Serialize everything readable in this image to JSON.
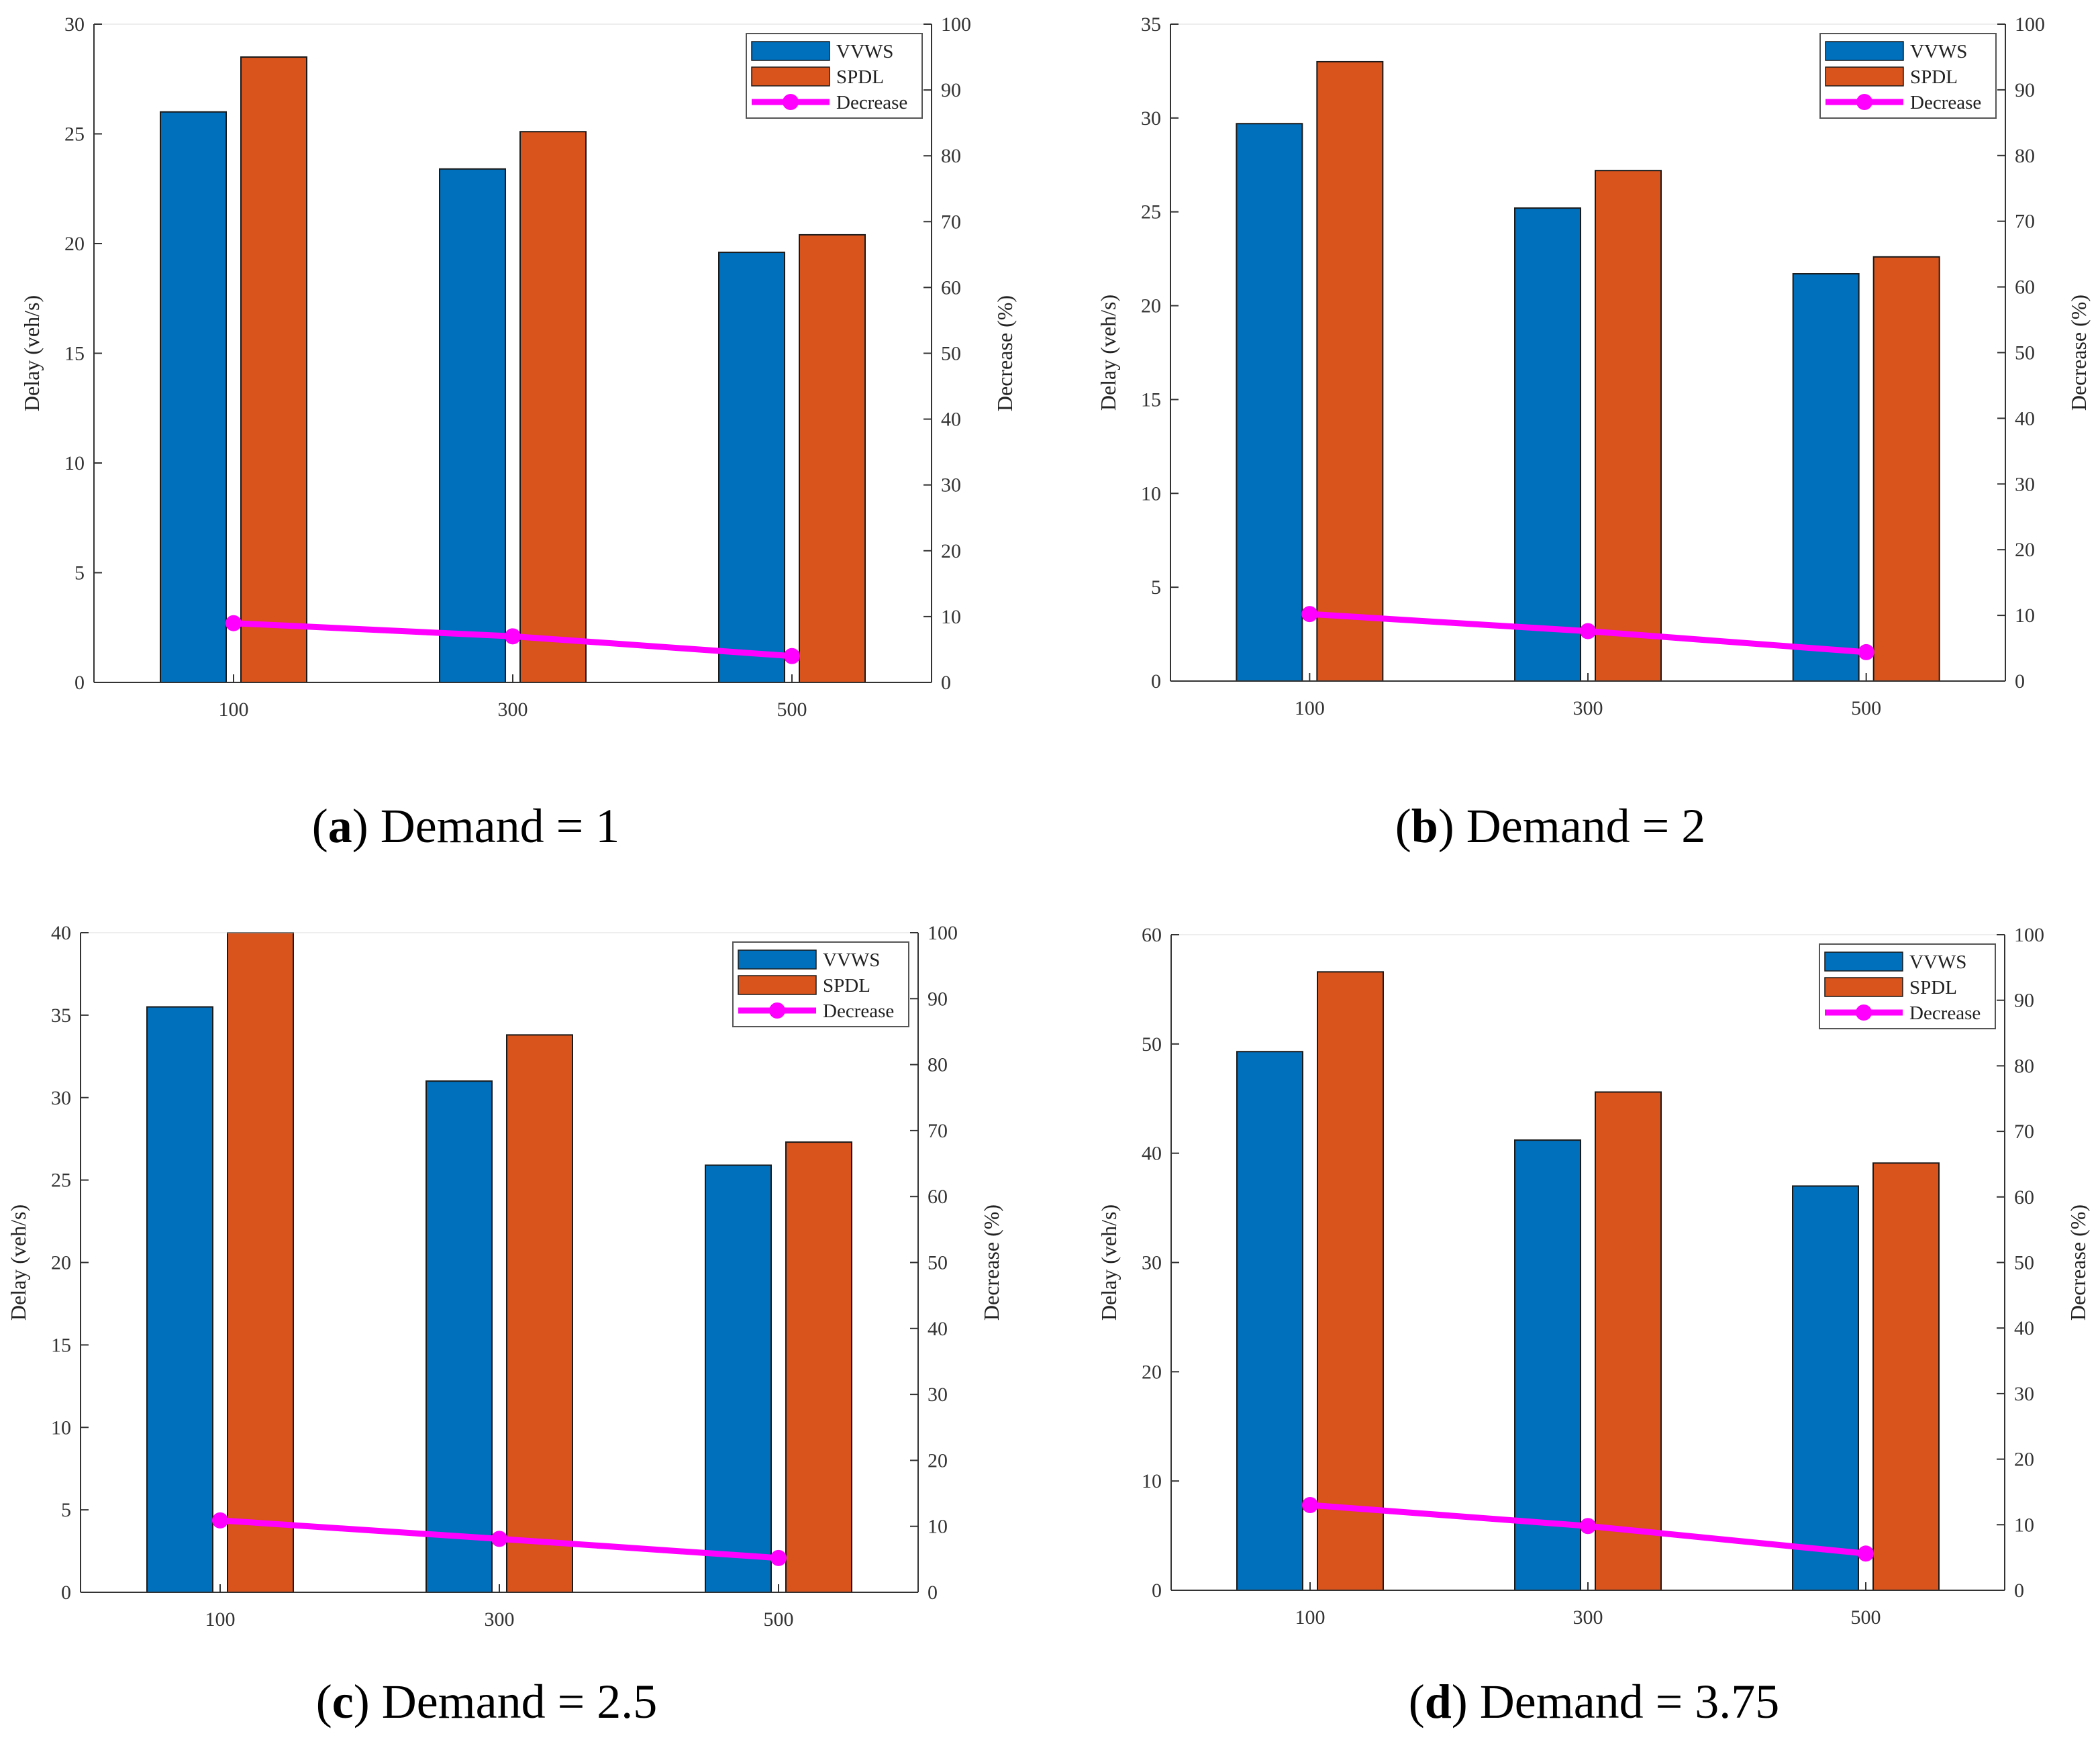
{
  "colors": {
    "vvws": "#0070bd",
    "spdl": "#d9531c",
    "decrease": "#ff00ff",
    "axis": "#333333"
  },
  "chart_data": [
    {
      "type": "bar",
      "panel": "a",
      "caption": "Demand = 1",
      "categories": [
        "100",
        "300",
        "500"
      ],
      "series": [
        {
          "name": "VVWS",
          "values": [
            26.0,
            23.4,
            19.6
          ]
        },
        {
          "name": "SPDL",
          "values": [
            28.5,
            25.1,
            20.4
          ]
        }
      ],
      "line_series": {
        "name": "Decrease",
        "axis": "right",
        "values": [
          9.0,
          7.0,
          4.0
        ]
      },
      "ylabel": "Delay (veh/s)",
      "y2label": "Decrease (%)",
      "ylim": [
        0,
        30
      ],
      "yticks": [
        "0",
        "5",
        "10",
        "15",
        "20",
        "25",
        "30"
      ],
      "y2lim": [
        0,
        100
      ],
      "y2ticks": [
        "0",
        "10",
        "20",
        "30",
        "40",
        "50",
        "60",
        "70",
        "80",
        "90",
        "100"
      ],
      "legend": "top-right"
    },
    {
      "type": "bar",
      "panel": "b",
      "caption": "Demand = 2",
      "categories": [
        "100",
        "300",
        "500"
      ],
      "series": [
        {
          "name": "VVWS",
          "values": [
            29.7,
            25.2,
            21.7
          ]
        },
        {
          "name": "SPDL",
          "values": [
            33.0,
            27.2,
            22.6
          ]
        }
      ],
      "line_series": {
        "name": "Decrease",
        "axis": "right",
        "values": [
          10.2,
          7.6,
          4.4
        ]
      },
      "ylabel": "Delay (veh/s)",
      "y2label": "Decrease (%)",
      "ylim": [
        0,
        35
      ],
      "yticks": [
        "0",
        "5",
        "10",
        "15",
        "20",
        "25",
        "30",
        "35"
      ],
      "y2lim": [
        0,
        100
      ],
      "y2ticks": [
        "0",
        "10",
        "20",
        "30",
        "40",
        "50",
        "60",
        "70",
        "80",
        "90",
        "100"
      ],
      "legend": "top-right"
    },
    {
      "type": "bar",
      "panel": "c",
      "caption": "Demand = 2.5",
      "categories": [
        "100",
        "300",
        "500"
      ],
      "series": [
        {
          "name": "VVWS",
          "values": [
            35.5,
            31.0,
            25.9
          ]
        },
        {
          "name": "SPDL",
          "values": [
            40.0,
            33.8,
            27.3
          ]
        }
      ],
      "line_series": {
        "name": "Decrease",
        "axis": "right",
        "values": [
          10.9,
          8.1,
          5.2
        ]
      },
      "ylabel": "Delay (veh/s)",
      "y2label": "Decrease (%)",
      "ylim": [
        0,
        40
      ],
      "yticks": [
        "0",
        "5",
        "10",
        "15",
        "20",
        "25",
        "30",
        "35",
        "40"
      ],
      "y2lim": [
        0,
        100
      ],
      "y2ticks": [
        "0",
        "10",
        "20",
        "30",
        "40",
        "50",
        "60",
        "70",
        "80",
        "90",
        "100"
      ],
      "legend": "top-right"
    },
    {
      "type": "bar",
      "panel": "d",
      "caption": "Demand = 3.75",
      "categories": [
        "100",
        "300",
        "500"
      ],
      "series": [
        {
          "name": "VVWS",
          "values": [
            49.3,
            41.2,
            37.0
          ]
        },
        {
          "name": "SPDL",
          "values": [
            56.6,
            45.6,
            39.1
          ]
        }
      ],
      "line_series": {
        "name": "Decrease",
        "axis": "right",
        "values": [
          13.0,
          9.8,
          5.6
        ]
      },
      "ylabel": "Delay (veh/s)",
      "y2label": "Decrease (%)",
      "ylim": [
        0,
        60
      ],
      "yticks": [
        "0",
        "10",
        "20",
        "30",
        "40",
        "50",
        "60"
      ],
      "y2lim": [
        0,
        100
      ],
      "y2ticks": [
        "0",
        "10",
        "20",
        "30",
        "40",
        "50",
        "60",
        "70",
        "80",
        "90",
        "100"
      ],
      "legend": "top-right"
    }
  ]
}
